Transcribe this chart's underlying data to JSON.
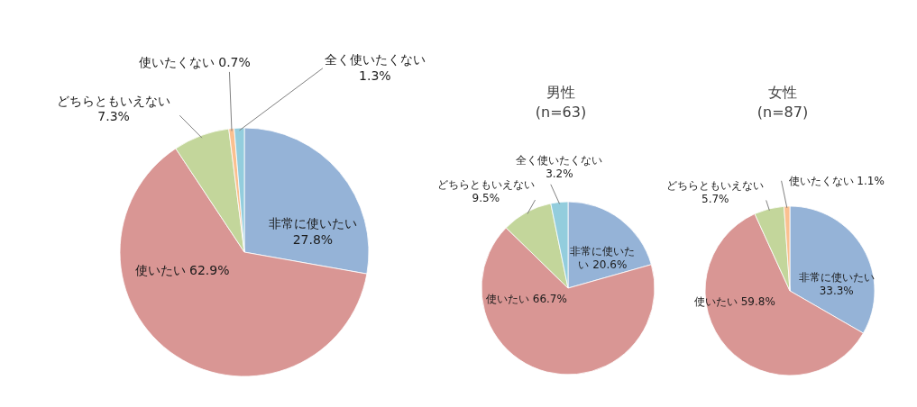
{
  "chart_data": [
    {
      "type": "pie",
      "categories": [
        "非常に使いたい",
        "使いたい",
        "どちらともいえない",
        "使いたくない",
        "全く使いたくない"
      ],
      "values": [
        27.8,
        62.9,
        7.3,
        0.7,
        1.3
      ],
      "value_labels": [
        "27.8%",
        "62.9%",
        "7.3%",
        "0.7%",
        "1.3%"
      ],
      "colors": [
        "#95b3d7",
        "#d99694",
        "#c3d69b",
        "#fac090",
        "#93cddd"
      ]
    },
    {
      "type": "pie",
      "title": "男性",
      "subtitle": "(n=63)",
      "categories": [
        "非常に使いたい",
        "使いたい",
        "どちらともいえない",
        "全く使いたくない"
      ],
      "values": [
        20.6,
        66.7,
        9.5,
        3.2
      ],
      "value_labels": [
        "20.6%",
        "66.7%",
        "9.5%",
        "3.2%"
      ],
      "colors": [
        "#95b3d7",
        "#d99694",
        "#c3d69b",
        "#93cddd"
      ]
    },
    {
      "type": "pie",
      "title": "女性",
      "subtitle": "(n=87)",
      "categories": [
        "非常に使いたい",
        "使いたい",
        "どちらともいえない",
        "使いたくない"
      ],
      "values": [
        33.3,
        59.8,
        5.7,
        1.1
      ],
      "value_labels": [
        "33.3%",
        "59.8%",
        "5.7%",
        "1.1%"
      ],
      "colors": [
        "#95b3d7",
        "#d99694",
        "#c3d69b",
        "#fac090"
      ]
    }
  ]
}
